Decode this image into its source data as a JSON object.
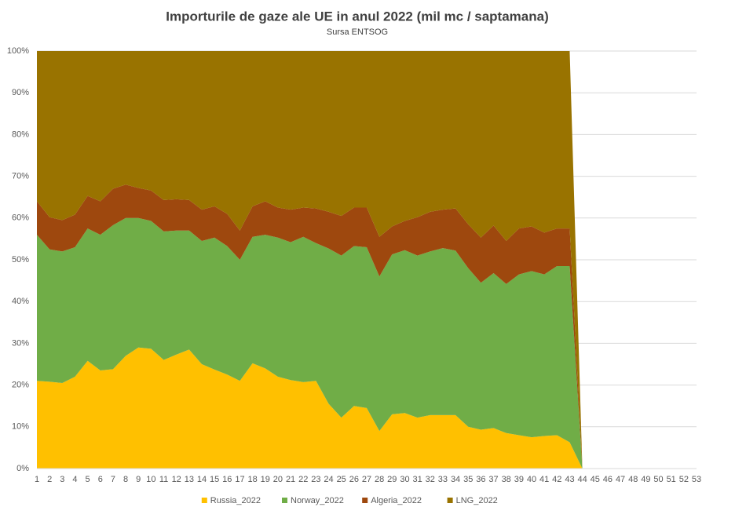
{
  "chart_data": {
    "type": "stacked_area_100",
    "title": "Importurile de gaze ale UE in anul 2022 (mil mc / saptamana)",
    "subtitle": "Sursa ENTSOG",
    "categories": [
      1,
      2,
      3,
      4,
      5,
      6,
      7,
      8,
      9,
      10,
      11,
      12,
      13,
      14,
      15,
      16,
      17,
      18,
      19,
      20,
      21,
      22,
      23,
      24,
      25,
      26,
      27,
      28,
      29,
      30,
      31,
      32,
      33,
      34,
      35,
      36,
      37,
      38,
      39,
      40,
      41,
      42,
      43,
      44,
      45,
      46,
      47,
      48,
      49,
      50,
      51,
      52,
      53
    ],
    "series": [
      {
        "name": "Russia_2022",
        "color": "#ffc000",
        "values": [
          21,
          20.8,
          20.5,
          22,
          25.8,
          23.5,
          23.8,
          27,
          29,
          28.7,
          26,
          27.3,
          28.5,
          25,
          23.7,
          22.5,
          21,
          25.2,
          24,
          22,
          21.2,
          20.7,
          21,
          15.5,
          12.2,
          15,
          14.5,
          9,
          13,
          13.3,
          12.2,
          12.8,
          12.8,
          12.8,
          10,
          9.3,
          9.7,
          8.5,
          8,
          7.5,
          7.8,
          8,
          6.3,
          0,
          null,
          null,
          null,
          null,
          null,
          null,
          null,
          null,
          null
        ]
      },
      {
        "name": "Norway_2022",
        "color": "#70ad47",
        "values": [
          35,
          31.7,
          31.5,
          31,
          31.7,
          32.5,
          34.5,
          33,
          31,
          30.6,
          30.8,
          29.7,
          28.5,
          29.5,
          31.6,
          30.8,
          29,
          30.3,
          32,
          33.3,
          33,
          34.8,
          33,
          37.2,
          38.8,
          38.3,
          38.5,
          37,
          38.3,
          39,
          38.8,
          39.2,
          40,
          39.4,
          38,
          35.2,
          37.1,
          35.7,
          38.5,
          39.8,
          38.7,
          40.5,
          42.2,
          0,
          null,
          null,
          null,
          null,
          null,
          null,
          null,
          null,
          null
        ]
      },
      {
        "name": "Algeria_2022",
        "color": "#9e480e",
        "values": [
          8,
          7.7,
          7.5,
          7.8,
          7.8,
          8,
          8.7,
          8,
          7.2,
          7.3,
          7.5,
          7.5,
          7.3,
          7.5,
          7.5,
          7.7,
          7,
          7.3,
          8,
          7.2,
          7.8,
          7,
          8.3,
          8.8,
          9.5,
          9.2,
          9.5,
          9.5,
          6.7,
          7,
          9.2,
          9.5,
          9.2,
          10.1,
          10.5,
          10.8,
          11.4,
          10.3,
          11,
          10.7,
          10,
          9,
          9,
          0,
          null,
          null,
          null,
          null,
          null,
          null,
          null,
          null,
          null
        ]
      },
      {
        "name": "LNG_2022",
        "color": "#997300",
        "values": [
          36,
          39.8,
          40.5,
          39.2,
          34.7,
          36,
          33,
          32,
          32.8,
          33.4,
          35.7,
          35.5,
          35.7,
          38,
          37.2,
          39,
          43,
          37.2,
          36,
          37.5,
          38,
          37.5,
          37.7,
          38.5,
          39.5,
          37.5,
          37.5,
          44.5,
          42,
          40.7,
          39.8,
          38.5,
          38,
          37.7,
          41.5,
          44.7,
          41.8,
          45.5,
          42.5,
          42,
          43.5,
          42.5,
          42.5,
          0,
          null,
          null,
          null,
          null,
          null,
          null,
          null,
          null,
          null
        ]
      }
    ],
    "ylim": [
      0,
      100
    ],
    "yticks": [
      {
        "value": 0,
        "label": "0%"
      },
      {
        "value": 10,
        "label": "10%"
      },
      {
        "value": 20,
        "label": "20%"
      },
      {
        "value": 30,
        "label": "30%"
      },
      {
        "value": 40,
        "label": "40%"
      },
      {
        "value": 50,
        "label": "50%"
      },
      {
        "value": 60,
        "label": "60%"
      },
      {
        "value": 70,
        "label": "70%"
      },
      {
        "value": 80,
        "label": "80%"
      },
      {
        "value": 90,
        "label": "90%"
      },
      {
        "value": 100,
        "label": "100%"
      }
    ],
    "grid": true,
    "legend": "bottom"
  }
}
